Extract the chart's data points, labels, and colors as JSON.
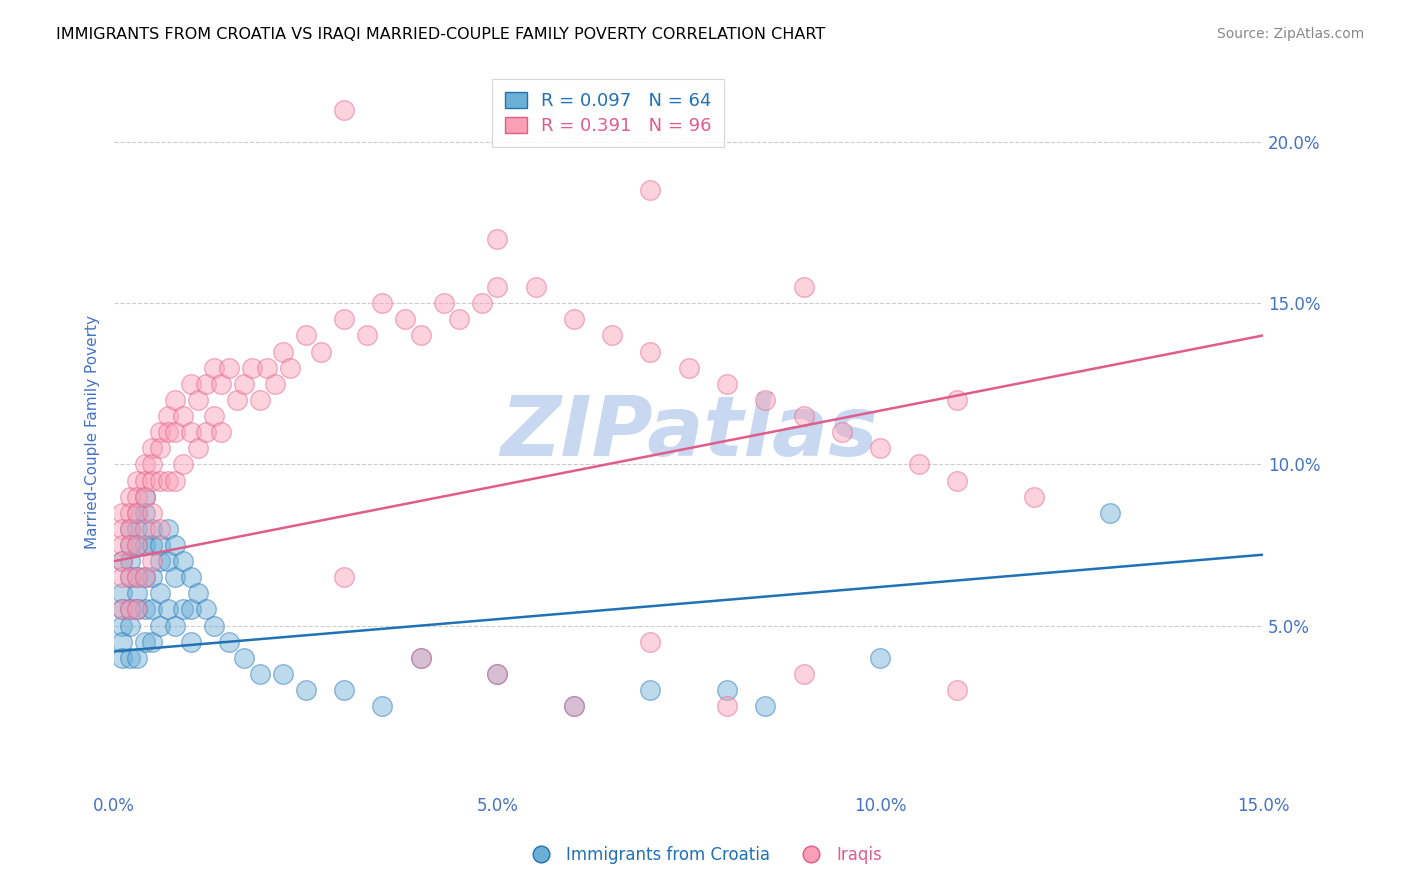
{
  "title": "IMMIGRANTS FROM CROATIA VS IRAQI MARRIED-COUPLE FAMILY POVERTY CORRELATION CHART",
  "source": "Source: ZipAtlas.com",
  "ylabel": "Married-Couple Family Poverty",
  "xlabel": "",
  "legend_labels": [
    "Immigrants from Croatia",
    "Iraqis"
  ],
  "blue_R": "0.097",
  "blue_N": "64",
  "pink_R": "0.391",
  "pink_N": "96",
  "xlim": [
    0.0,
    0.15
  ],
  "ylim": [
    0.0,
    0.22
  ],
  "yticks": [
    0.05,
    0.1,
    0.15,
    0.2
  ],
  "ytick_labels": [
    "5.0%",
    "10.0%",
    "15.0%",
    "20.0%"
  ],
  "xticks": [
    0.0,
    0.05,
    0.1,
    0.15
  ],
  "xtick_labels": [
    "0.0%",
    "5.0%",
    "10.0%",
    "15.0%"
  ],
  "blue_color": "#6baed6",
  "pink_color": "#fa9fb5",
  "blue_line_color": "#2171b5",
  "pink_line_color": "#e05c8a",
  "axis_label_color": "#4472C4",
  "watermark": "ZIPatlas",
  "watermark_color": "#c8d8f0",
  "blue_trend_x": [
    0.0,
    0.15
  ],
  "blue_trend_y": [
    0.042,
    0.072
  ],
  "pink_trend_x": [
    0.0,
    0.15
  ],
  "pink_trend_y": [
    0.07,
    0.14
  ],
  "blue_x": [
    0.001,
    0.001,
    0.001,
    0.001,
    0.001,
    0.001,
    0.002,
    0.002,
    0.002,
    0.002,
    0.002,
    0.002,
    0.002,
    0.003,
    0.003,
    0.003,
    0.003,
    0.003,
    0.003,
    0.003,
    0.004,
    0.004,
    0.004,
    0.004,
    0.004,
    0.004,
    0.005,
    0.005,
    0.005,
    0.005,
    0.005,
    0.006,
    0.006,
    0.006,
    0.006,
    0.007,
    0.007,
    0.007,
    0.008,
    0.008,
    0.008,
    0.009,
    0.009,
    0.01,
    0.01,
    0.01,
    0.011,
    0.012,
    0.013,
    0.015,
    0.017,
    0.019,
    0.022,
    0.025,
    0.03,
    0.035,
    0.04,
    0.05,
    0.06,
    0.07,
    0.08,
    0.085,
    0.1,
    0.13
  ],
  "blue_y": [
    0.07,
    0.06,
    0.055,
    0.05,
    0.045,
    0.04,
    0.08,
    0.075,
    0.07,
    0.065,
    0.055,
    0.05,
    0.04,
    0.085,
    0.08,
    0.075,
    0.065,
    0.06,
    0.055,
    0.04,
    0.09,
    0.085,
    0.075,
    0.065,
    0.055,
    0.045,
    0.08,
    0.075,
    0.065,
    0.055,
    0.045,
    0.075,
    0.07,
    0.06,
    0.05,
    0.08,
    0.07,
    0.055,
    0.075,
    0.065,
    0.05,
    0.07,
    0.055,
    0.065,
    0.055,
    0.045,
    0.06,
    0.055,
    0.05,
    0.045,
    0.04,
    0.035,
    0.035,
    0.03,
    0.03,
    0.025,
    0.04,
    0.035,
    0.025,
    0.03,
    0.03,
    0.025,
    0.04,
    0.085
  ],
  "pink_x": [
    0.001,
    0.001,
    0.001,
    0.001,
    0.001,
    0.001,
    0.002,
    0.002,
    0.002,
    0.002,
    0.002,
    0.002,
    0.003,
    0.003,
    0.003,
    0.003,
    0.003,
    0.003,
    0.004,
    0.004,
    0.004,
    0.004,
    0.004,
    0.005,
    0.005,
    0.005,
    0.005,
    0.005,
    0.006,
    0.006,
    0.006,
    0.006,
    0.007,
    0.007,
    0.007,
    0.008,
    0.008,
    0.008,
    0.009,
    0.009,
    0.01,
    0.01,
    0.011,
    0.011,
    0.012,
    0.012,
    0.013,
    0.013,
    0.014,
    0.014,
    0.015,
    0.016,
    0.017,
    0.018,
    0.019,
    0.02,
    0.021,
    0.022,
    0.023,
    0.025,
    0.027,
    0.03,
    0.033,
    0.035,
    0.038,
    0.04,
    0.043,
    0.045,
    0.048,
    0.05,
    0.055,
    0.06,
    0.065,
    0.07,
    0.075,
    0.08,
    0.085,
    0.09,
    0.095,
    0.1,
    0.105,
    0.11,
    0.12,
    0.03,
    0.05,
    0.07,
    0.09,
    0.11,
    0.03,
    0.05,
    0.07,
    0.09,
    0.11,
    0.04,
    0.06,
    0.08
  ],
  "pink_y": [
    0.085,
    0.08,
    0.075,
    0.07,
    0.065,
    0.055,
    0.09,
    0.085,
    0.08,
    0.075,
    0.065,
    0.055,
    0.095,
    0.09,
    0.085,
    0.075,
    0.065,
    0.055,
    0.1,
    0.095,
    0.09,
    0.08,
    0.065,
    0.105,
    0.1,
    0.095,
    0.085,
    0.07,
    0.11,
    0.105,
    0.095,
    0.08,
    0.115,
    0.11,
    0.095,
    0.12,
    0.11,
    0.095,
    0.115,
    0.1,
    0.125,
    0.11,
    0.12,
    0.105,
    0.125,
    0.11,
    0.13,
    0.115,
    0.125,
    0.11,
    0.13,
    0.12,
    0.125,
    0.13,
    0.12,
    0.13,
    0.125,
    0.135,
    0.13,
    0.14,
    0.135,
    0.145,
    0.14,
    0.15,
    0.145,
    0.14,
    0.15,
    0.145,
    0.15,
    0.155,
    0.155,
    0.145,
    0.14,
    0.135,
    0.13,
    0.125,
    0.12,
    0.115,
    0.11,
    0.105,
    0.1,
    0.095,
    0.09,
    0.065,
    0.035,
    0.045,
    0.035,
    0.03,
    0.21,
    0.17,
    0.185,
    0.155,
    0.12,
    0.04,
    0.025,
    0.025
  ]
}
